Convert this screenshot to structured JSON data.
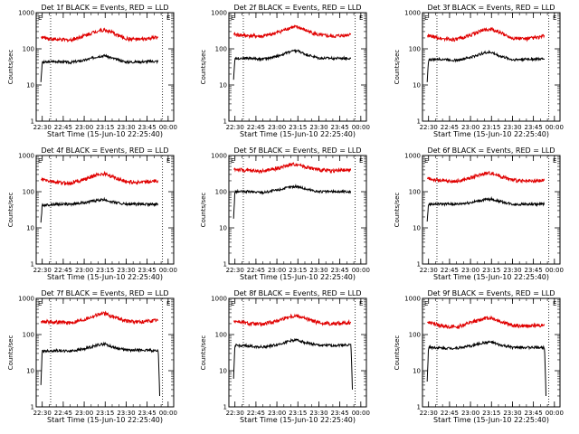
{
  "colors": {
    "events": "#000000",
    "lld": "#e00000",
    "axis": "#000000",
    "marker": "#000000"
  },
  "chart_data": [
    {
      "type": "line",
      "title": "Det 1f BLACK = Events, RED = LLD",
      "xlabel": "Start Time (15-Jun-10 22:25:40)",
      "ylabel": "Counts/sec",
      "yscale": "log",
      "ylim": [
        1,
        1000
      ],
      "y_ticks": [
        "1",
        "10",
        "100",
        "1000"
      ],
      "x_ticks": [
        "22:30",
        "22:45",
        "23:00",
        "23:15",
        "23:30",
        "23:45",
        "00:00"
      ],
      "xlim": [
        "22:25:40",
        "00:04:00"
      ],
      "legend": "none",
      "grid": false,
      "markers": [
        "22:36",
        "23:56"
      ],
      "corner_label": "E",
      "series": [
        {
          "color": "black",
          "x": [
            "22:29",
            "22:30",
            "22:40",
            "22:50",
            "23:00",
            "23:10",
            "23:15",
            "23:20",
            "23:30",
            "23:40",
            "23:50",
            "23:53"
          ],
          "y": [
            12,
            42,
            45,
            42,
            48,
            62,
            65,
            55,
            43,
            44,
            45,
            45
          ]
        },
        {
          "color": "red",
          "x": [
            "22:29",
            "22:40",
            "22:50",
            "23:00",
            "23:10",
            "23:15",
            "23:20",
            "23:30",
            "23:40",
            "23:50",
            "23:53"
          ],
          "y": [
            210,
            180,
            175,
            230,
            320,
            330,
            280,
            190,
            180,
            200,
            210
          ]
        }
      ]
    },
    {
      "type": "line",
      "title": "Det 2f BLACK = Events, RED = LLD",
      "xlabel": "Start Time (15-Jun-10 22:25:40)",
      "ylabel": "Counts/sec",
      "yscale": "log",
      "ylim": [
        1,
        1000
      ],
      "y_ticks": [
        "1",
        "10",
        "100",
        "1000"
      ],
      "x_ticks": [
        "22:30",
        "22:45",
        "23:00",
        "23:15",
        "23:30",
        "23:45",
        "00:00"
      ],
      "xlim": [
        "22:25:40",
        "00:04:00"
      ],
      "legend": "none",
      "grid": false,
      "markers": [
        "22:36",
        "23:56"
      ],
      "corner_label": "E",
      "series": [
        {
          "color": "black",
          "x": [
            "22:29",
            "22:30",
            "22:40",
            "22:50",
            "23:00",
            "23:10",
            "23:15",
            "23:20",
            "23:30",
            "23:40",
            "23:50",
            "23:53"
          ],
          "y": [
            14,
            55,
            55,
            52,
            62,
            85,
            88,
            72,
            55,
            55,
            55,
            55
          ]
        },
        {
          "color": "red",
          "x": [
            "22:29",
            "22:40",
            "22:50",
            "23:00",
            "23:10",
            "23:15",
            "23:20",
            "23:30",
            "23:40",
            "23:50",
            "23:53"
          ],
          "y": [
            250,
            230,
            220,
            280,
            390,
            400,
            330,
            240,
            220,
            240,
            260
          ]
        }
      ]
    },
    {
      "type": "line",
      "title": "Det 3f BLACK = Events, RED = LLD",
      "xlabel": "Start Time (15-Jun-10 22:25:40)",
      "ylabel": "Counts/sec",
      "yscale": "log",
      "ylim": [
        1,
        1000
      ],
      "y_ticks": [
        "1",
        "10",
        "100",
        "1000"
      ],
      "x_ticks": [
        "22:30",
        "22:45",
        "23:00",
        "23:15",
        "23:30",
        "23:45",
        "00:00"
      ],
      "xlim": [
        "22:25:40",
        "00:04:00"
      ],
      "legend": "none",
      "grid": false,
      "markers": [
        "22:36",
        "23:56"
      ],
      "corner_label": "E",
      "series": [
        {
          "color": "black",
          "x": [
            "22:29",
            "22:30",
            "22:40",
            "22:50",
            "23:00",
            "23:10",
            "23:15",
            "23:20",
            "23:30",
            "23:40",
            "23:50",
            "23:53"
          ],
          "y": [
            12,
            50,
            52,
            48,
            58,
            78,
            80,
            65,
            50,
            52,
            52,
            52
          ]
        },
        {
          "color": "red",
          "x": [
            "22:29",
            "22:40",
            "22:50",
            "23:00",
            "23:10",
            "23:15",
            "23:20",
            "23:30",
            "23:40",
            "23:50",
            "23:53"
          ],
          "y": [
            230,
            190,
            180,
            240,
            340,
            350,
            290,
            200,
            190,
            210,
            230
          ]
        }
      ]
    },
    {
      "type": "line",
      "title": "Det 4f BLACK = Events, RED = LLD",
      "xlabel": "Start Time (15-Jun-10 22:25:40)",
      "ylabel": "Counts/sec",
      "yscale": "log",
      "ylim": [
        1,
        1000
      ],
      "y_ticks": [
        "1",
        "10",
        "100",
        "1000"
      ],
      "x_ticks": [
        "22:30",
        "22:45",
        "23:00",
        "23:15",
        "23:30",
        "23:45",
        "00:00"
      ],
      "xlim": [
        "22:25:40",
        "00:04:00"
      ],
      "legend": "none",
      "grid": false,
      "markers": [
        "22:36",
        "23:56"
      ],
      "corner_label": "E",
      "series": [
        {
          "color": "black",
          "x": [
            "22:29",
            "22:30",
            "22:40",
            "22:50",
            "23:00",
            "23:10",
            "23:15",
            "23:20",
            "23:30",
            "23:40",
            "23:50",
            "23:53"
          ],
          "y": [
            14,
            42,
            45,
            45,
            50,
            58,
            60,
            52,
            45,
            45,
            45,
            45
          ]
        },
        {
          "color": "red",
          "x": [
            "22:29",
            "22:40",
            "22:50",
            "23:00",
            "23:10",
            "23:15",
            "23:20",
            "23:30",
            "23:40",
            "23:50",
            "23:53"
          ],
          "y": [
            220,
            180,
            170,
            220,
            300,
            310,
            260,
            190,
            180,
            190,
            200
          ]
        }
      ]
    },
    {
      "type": "line",
      "title": "Det 5f BLACK = Events, RED = LLD",
      "xlabel": "Start Time (15-Jun-10 22:25:40)",
      "ylabel": "Counts/sec",
      "yscale": "log",
      "ylim": [
        1,
        1000
      ],
      "y_ticks": [
        "1",
        "10",
        "100",
        "1000"
      ],
      "x_ticks": [
        "22:30",
        "22:45",
        "23:00",
        "23:15",
        "23:30",
        "23:45",
        "00:00"
      ],
      "xlim": [
        "22:25:40",
        "00:04:00"
      ],
      "legend": "none",
      "grid": false,
      "markers": [
        "22:36",
        "23:56"
      ],
      "corner_label": "E",
      "series": [
        {
          "color": "black",
          "x": [
            "22:29",
            "22:30",
            "22:40",
            "22:50",
            "23:00",
            "23:10",
            "23:15",
            "23:20",
            "23:30",
            "23:40",
            "23:50",
            "23:53"
          ],
          "y": [
            18,
            100,
            100,
            95,
            110,
            135,
            140,
            120,
            100,
            100,
            100,
            100
          ]
        },
        {
          "color": "red",
          "x": [
            "22:29",
            "22:40",
            "22:50",
            "23:00",
            "23:10",
            "23:15",
            "23:20",
            "23:30",
            "23:40",
            "23:50",
            "23:53"
          ],
          "y": [
            420,
            380,
            370,
            440,
            560,
            580,
            490,
            400,
            380,
            390,
            400
          ]
        }
      ]
    },
    {
      "type": "line",
      "title": "Det 6f BLACK = Events, RED = LLD",
      "xlabel": "Start Time (15-Jun-10 22:25:40)",
      "ylabel": "Counts/sec",
      "yscale": "log",
      "ylim": [
        1,
        1000
      ],
      "y_ticks": [
        "1",
        "10",
        "100",
        "1000"
      ],
      "x_ticks": [
        "22:30",
        "22:45",
        "23:00",
        "23:15",
        "23:30",
        "23:45",
        "00:00"
      ],
      "xlim": [
        "22:25:40",
        "00:04:00"
      ],
      "legend": "none",
      "grid": false,
      "markers": [
        "22:36",
        "23:56"
      ],
      "corner_label": "E",
      "series": [
        {
          "color": "black",
          "x": [
            "22:29",
            "22:30",
            "22:40",
            "22:50",
            "23:00",
            "23:10",
            "23:15",
            "23:20",
            "23:30",
            "23:40",
            "23:50",
            "23:53"
          ],
          "y": [
            15,
            45,
            46,
            45,
            50,
            60,
            62,
            55,
            45,
            45,
            45,
            45
          ]
        },
        {
          "color": "red",
          "x": [
            "22:29",
            "22:40",
            "22:50",
            "23:00",
            "23:10",
            "23:15",
            "23:20",
            "23:30",
            "23:40",
            "23:50",
            "23:53"
          ],
          "y": [
            230,
            200,
            190,
            240,
            320,
            330,
            280,
            210,
            190,
            200,
            210
          ]
        }
      ]
    },
    {
      "type": "line",
      "title": "Det 7f BLACK = Events, RED = LLD",
      "xlabel": "Start Time (15-Jun-10 22:25:40)",
      "ylabel": "Counts/sec",
      "yscale": "log",
      "ylim": [
        1,
        1000
      ],
      "y_ticks": [
        "1",
        "10",
        "100",
        "1000"
      ],
      "x_ticks": [
        "22:30",
        "22:45",
        "23:00",
        "23:15",
        "23:30",
        "23:45",
        "00:00"
      ],
      "xlim": [
        "22:25:40",
        "00:04:00"
      ],
      "legend": "none",
      "grid": false,
      "markers": [
        "22:36",
        "23:56"
      ],
      "corner_label": "E",
      "series": [
        {
          "color": "black",
          "x": [
            "22:29",
            "22:30",
            "22:40",
            "22:50",
            "23:00",
            "23:10",
            "23:15",
            "23:20",
            "23:30",
            "23:40",
            "23:50",
            "23:53",
            "23:54"
          ],
          "y": [
            4,
            35,
            36,
            35,
            40,
            52,
            55,
            45,
            37,
            37,
            36,
            36,
            2
          ]
        },
        {
          "color": "red",
          "x": [
            "22:29",
            "22:40",
            "22:50",
            "23:00",
            "23:10",
            "23:15",
            "23:20",
            "23:30",
            "23:40",
            "23:50",
            "23:53"
          ],
          "y": [
            230,
            220,
            210,
            260,
            360,
            380,
            320,
            240,
            220,
            240,
            250
          ]
        }
      ]
    },
    {
      "type": "line",
      "title": "Det 8f BLACK = Events, RED = LLD",
      "xlabel": "Start Time (15-Jun-10 22:25:40)",
      "ylabel": "Counts/sec",
      "yscale": "log",
      "ylim": [
        1,
        1000
      ],
      "y_ticks": [
        "1",
        "10",
        "100",
        "1000"
      ],
      "x_ticks": [
        "22:30",
        "22:45",
        "23:00",
        "23:15",
        "23:30",
        "23:45",
        "00:00"
      ],
      "xlim": [
        "22:25:40",
        "00:04:00"
      ],
      "legend": "none",
      "grid": false,
      "markers": [
        "22:36",
        "23:56"
      ],
      "corner_label": "E",
      "series": [
        {
          "color": "black",
          "x": [
            "22:29",
            "22:30",
            "22:40",
            "22:50",
            "23:00",
            "23:10",
            "23:15",
            "23:20",
            "23:30",
            "23:40",
            "23:50",
            "23:53",
            "23:54"
          ],
          "y": [
            6,
            50,
            48,
            45,
            52,
            68,
            70,
            60,
            50,
            50,
            52,
            52,
            3
          ]
        },
        {
          "color": "red",
          "x": [
            "22:29",
            "22:40",
            "22:50",
            "23:00",
            "23:10",
            "23:15",
            "23:20",
            "23:30",
            "23:40",
            "23:50",
            "23:53"
          ],
          "y": [
            240,
            200,
            190,
            240,
            320,
            330,
            280,
            210,
            200,
            210,
            220
          ]
        }
      ]
    },
    {
      "type": "line",
      "title": "Det 9f BLACK = Events, RED = LLD",
      "xlabel": "Start Time (15-Jun-10 22:25:40)",
      "ylabel": "Counts/sec",
      "yscale": "log",
      "ylim": [
        1,
        1000
      ],
      "y_ticks": [
        "1",
        "10",
        "100",
        "1000"
      ],
      "x_ticks": [
        "22:30",
        "22:45",
        "23:00",
        "23:15",
        "23:30",
        "23:45",
        "00:00"
      ],
      "xlim": [
        "22:25:40",
        "00:04:00"
      ],
      "legend": "none",
      "grid": false,
      "markers": [
        "22:36",
        "23:56"
      ],
      "corner_label": "E",
      "series": [
        {
          "color": "black",
          "x": [
            "22:29",
            "22:30",
            "22:40",
            "22:50",
            "23:00",
            "23:10",
            "23:15",
            "23:20",
            "23:30",
            "23:40",
            "23:50",
            "23:53",
            "23:54"
          ],
          "y": [
            5,
            45,
            42,
            42,
            48,
            60,
            62,
            52,
            44,
            44,
            44,
            44,
            2
          ]
        },
        {
          "color": "red",
          "x": [
            "22:29",
            "22:40",
            "22:50",
            "23:00",
            "23:10",
            "23:15",
            "23:20",
            "23:30",
            "23:40",
            "23:50",
            "23:53"
          ],
          "y": [
            220,
            170,
            160,
            210,
            280,
            290,
            240,
            180,
            170,
            180,
            190
          ]
        }
      ]
    }
  ]
}
